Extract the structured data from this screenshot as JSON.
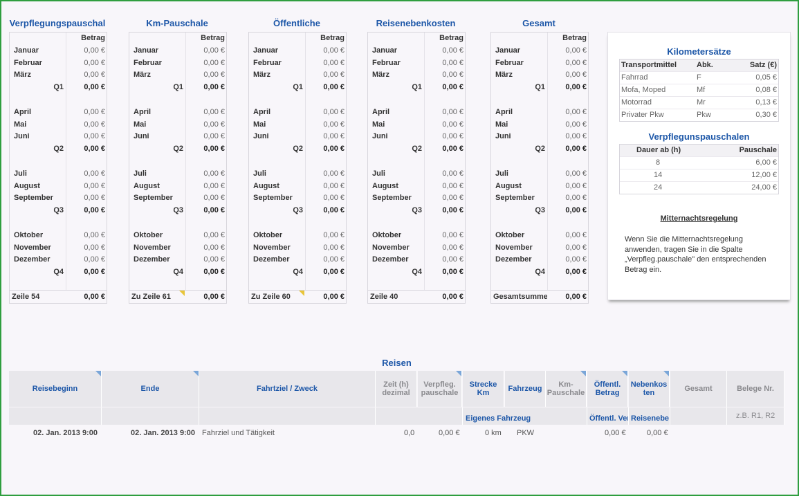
{
  "tables": [
    {
      "title": "Verpflegungspauschal",
      "header": "Betrag",
      "rows": [
        {
          "label": "Januar",
          "value": "0,00 €"
        },
        {
          "label": "Februar",
          "value": "0,00 €"
        },
        {
          "label": "März",
          "value": "0,00 €"
        },
        {
          "q": "Q1",
          "value": "0,00 €"
        },
        {
          "label": "April",
          "value": "0,00 €"
        },
        {
          "label": "Mai",
          "value": "0,00 €"
        },
        {
          "label": "Juni",
          "value": "0,00 €"
        },
        {
          "q": "Q2",
          "value": "0,00 €"
        },
        {
          "label": "Juli",
          "value": "0,00 €"
        },
        {
          "label": "August",
          "value": "0,00 €"
        },
        {
          "label": "September",
          "value": "0,00 €"
        },
        {
          "q": "Q3",
          "value": "0,00 €"
        },
        {
          "label": "Oktober",
          "value": "0,00 €"
        },
        {
          "label": "November",
          "value": "0,00 €"
        },
        {
          "label": "Dezember",
          "value": "0,00 €"
        },
        {
          "q": "Q4",
          "value": "0,00 €"
        }
      ],
      "footer_label": "Zeile 54",
      "footer_value": "0,00 €",
      "footer_note": false
    },
    {
      "title": "Km-Pauschale",
      "header": "Betrag",
      "rows": [
        {
          "label": "Januar",
          "value": "0,00 €"
        },
        {
          "label": "Februar",
          "value": "0,00 €"
        },
        {
          "label": "März",
          "value": "0,00 €"
        },
        {
          "q": "Q1",
          "value": "0,00 €"
        },
        {
          "label": "April",
          "value": "0,00 €"
        },
        {
          "label": "Mai",
          "value": "0,00 €"
        },
        {
          "label": "Juni",
          "value": "0,00 €"
        },
        {
          "q": "Q2",
          "value": "0,00 €"
        },
        {
          "label": "Juli",
          "value": "0,00 €"
        },
        {
          "label": "August",
          "value": "0,00 €"
        },
        {
          "label": "September",
          "value": "0,00 €"
        },
        {
          "q": "Q3",
          "value": "0,00 €"
        },
        {
          "label": "Oktober",
          "value": "0,00 €"
        },
        {
          "label": "November",
          "value": "0,00 €"
        },
        {
          "label": "Dezember",
          "value": "0,00 €"
        },
        {
          "q": "Q4",
          "value": "0,00 €"
        }
      ],
      "footer_label": "Zu Zeile 61",
      "footer_value": "0,00 €",
      "footer_note": true
    },
    {
      "title": "Öffentliche",
      "header": "Betrag",
      "rows": [
        {
          "label": "Januar",
          "value": "0,00 €"
        },
        {
          "label": "Februar",
          "value": "0,00 €"
        },
        {
          "label": "März",
          "value": "0,00 €"
        },
        {
          "q": "Q1",
          "value": "0,00 €"
        },
        {
          "label": "April",
          "value": "0,00 €"
        },
        {
          "label": "Mai",
          "value": "0,00 €"
        },
        {
          "label": "Juni",
          "value": "0,00 €"
        },
        {
          "q": "Q2",
          "value": "0,00 €"
        },
        {
          "label": "Juli",
          "value": "0,00 €"
        },
        {
          "label": "August",
          "value": "0,00 €"
        },
        {
          "label": "September",
          "value": "0,00 €"
        },
        {
          "q": "Q3",
          "value": "0,00 €"
        },
        {
          "label": "Oktober",
          "value": "0,00 €"
        },
        {
          "label": "November",
          "value": "0,00 €"
        },
        {
          "label": "Dezember",
          "value": "0,00 €"
        },
        {
          "q": "Q4",
          "value": "0,00 €"
        }
      ],
      "footer_label": "Zu Zeile 60",
      "footer_value": "0,00 €",
      "footer_note": true
    },
    {
      "title": "Reisenebenkosten",
      "header": "Betrag",
      "rows": [
        {
          "label": "Januar",
          "value": "0,00 €"
        },
        {
          "label": "Februar",
          "value": "0,00 €"
        },
        {
          "label": "März",
          "value": "0,00 €"
        },
        {
          "q": "Q1",
          "value": "0,00 €"
        },
        {
          "label": "April",
          "value": "0,00 €"
        },
        {
          "label": "Mai",
          "value": "0,00 €"
        },
        {
          "label": "Juni",
          "value": "0,00 €"
        },
        {
          "q": "Q2",
          "value": "0,00 €"
        },
        {
          "label": "Juli",
          "value": "0,00 €"
        },
        {
          "label": "August",
          "value": "0,00 €"
        },
        {
          "label": "September",
          "value": "0,00 €"
        },
        {
          "q": "Q3",
          "value": "0,00 €"
        },
        {
          "label": "Oktober",
          "value": "0,00 €"
        },
        {
          "label": "November",
          "value": "0,00 €"
        },
        {
          "label": "Dezember",
          "value": "0,00 €"
        },
        {
          "q": "Q4",
          "value": "0,00 €"
        }
      ],
      "footer_label": "Zeile 40",
      "footer_value": "0,00 €",
      "footer_note": false
    },
    {
      "title": "Gesamt",
      "header": "Betrag",
      "rows": [
        {
          "label": "Januar",
          "value": "0,00 €"
        },
        {
          "label": "Februar",
          "value": "0,00 €"
        },
        {
          "label": "März",
          "value": "0,00 €"
        },
        {
          "q": "Q1",
          "value": "0,00 €"
        },
        {
          "label": "April",
          "value": "0,00 €"
        },
        {
          "label": "Mai",
          "value": "0,00 €"
        },
        {
          "label": "Juni",
          "value": "0,00 €"
        },
        {
          "q": "Q2",
          "value": "0,00 €"
        },
        {
          "label": "Juli",
          "value": "0,00 €"
        },
        {
          "label": "August",
          "value": "0,00 €"
        },
        {
          "label": "September",
          "value": "0,00 €"
        },
        {
          "q": "Q3",
          "value": "0,00 €"
        },
        {
          "label": "Oktober",
          "value": "0,00 €"
        },
        {
          "label": "November",
          "value": "0,00 €"
        },
        {
          "label": "Dezember",
          "value": "0,00 €"
        },
        {
          "q": "Q4",
          "value": "0,00 €"
        }
      ],
      "footer_label": "Gesamtsumme",
      "footer_value": "0,00 €",
      "footer_note": false
    }
  ],
  "km_rates": {
    "title": "Kilometersätze",
    "headers": [
      "Transportmittel",
      "Abk.",
      "Satz (€)"
    ],
    "rows": [
      [
        "Fahrrad",
        "F",
        "0,05 €"
      ],
      [
        "Mofa, Moped",
        "Mf",
        "0,08 €"
      ],
      [
        "Motorrad",
        "Mr",
        "0,13 €"
      ],
      [
        "Privater Pkw",
        "Pkw",
        "0,30 €"
      ]
    ]
  },
  "meal_rates": {
    "title": "Verpflegunspauschalen",
    "headers": [
      "Dauer ab  (h)",
      "Pauschale"
    ],
    "rows": [
      [
        "8",
        "6,00 €"
      ],
      [
        "14",
        "12,00 €"
      ],
      [
        "24",
        "24,00 €"
      ]
    ]
  },
  "midnight": {
    "title": "Mitternachtsregelung",
    "text": "Wenn Sie die Mitternachtsregelung anwenden, tragen Sie in die Spalte „Verpfleg.pauschale\" den entsprechenden Betrag ein."
  },
  "reisen": {
    "title": "Reisen",
    "columns": {
      "reisebeginn": "Reisebeginn",
      "ende": "Ende",
      "fahrtziel": "Fahrtziel / Zweck",
      "zeit": "Zeit (h) dezimal",
      "verpfleg": "Verpfleg. pauschale",
      "strecke": "Strecke Km",
      "fahrzeug": "Fahrzeug",
      "kmpausch": "Km-Pauschale",
      "oeffentl": "Öffentl. Betrag",
      "nebenkosten": "Nebenkos ten",
      "gesamt": "Gesamt",
      "belege": "Belege Nr."
    },
    "sub": {
      "eigenes": "Eigenes Fahrzeug",
      "oeffentl": "Öffentl. Ver",
      "reisenebe": "Reisenebe",
      "belege_hint": "z.B. R1, R2"
    },
    "row": {
      "reisebeginn": "02. Jan. 2013  9:00",
      "ende": "02. Jan. 2013  9:00",
      "fahrtziel": "Fahrziel und Tätigkeit",
      "zeit": "0,0",
      "verpfleg": "0,00 €",
      "strecke": "0 km",
      "fahrzeug": "PKW",
      "oeffentl": "0,00 €",
      "nebenkosten": "0,00 €"
    }
  }
}
